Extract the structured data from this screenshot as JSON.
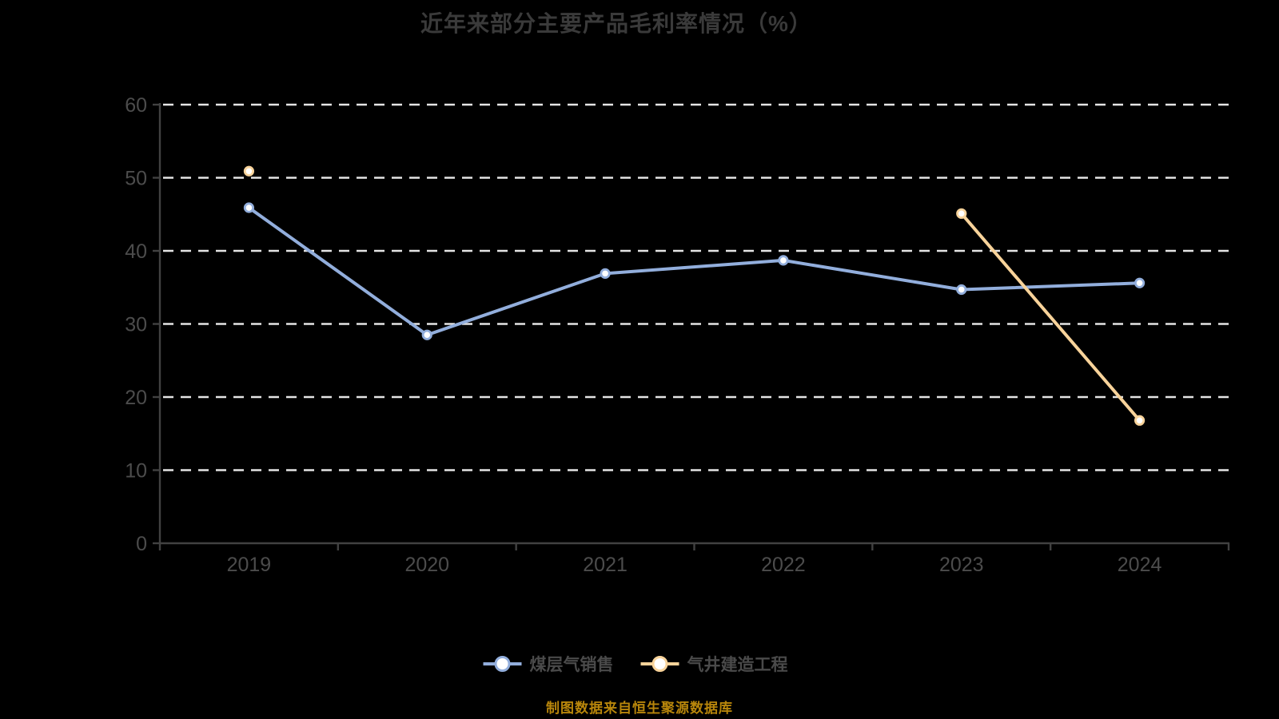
{
  "page": {
    "background": "#000000"
  },
  "title": {
    "text": "近年来部分主要产品毛利率情况（%）",
    "color": "#3A3A3A"
  },
  "footer": {
    "text": "制图数据来自恒生聚源数据库",
    "color": "#B8860B"
  },
  "chart_data": {
    "type": "line",
    "title": "近年来部分主要产品毛利率情况（%）",
    "categories": [
      "2019",
      "2020",
      "2021",
      "2022",
      "2023",
      "2024"
    ],
    "series": [
      {
        "name": "煤层气销售",
        "color": "#92AEDC",
        "marker_fill": "#FFFFFF",
        "values": [
          45.9,
          28.5,
          36.9,
          38.7,
          34.7,
          35.6
        ]
      },
      {
        "name": "气井建造工程",
        "color": "#F8D39A",
        "marker_fill": "#FFFFFF",
        "values": [
          50.9,
          null,
          null,
          null,
          45.1,
          16.8
        ]
      }
    ],
    "ylim": [
      0,
      60
    ],
    "yticks": [
      0,
      10,
      20,
      30,
      40,
      50,
      60
    ],
    "xlabel": "",
    "ylabel": "",
    "grid": "horizontal-dashed",
    "legend_position": "bottom",
    "colors": {
      "grid": "#E4E4E4",
      "axis": "#414141",
      "tick_label": "#4C4C4C",
      "legend_text": "#4A4A4A"
    }
  }
}
